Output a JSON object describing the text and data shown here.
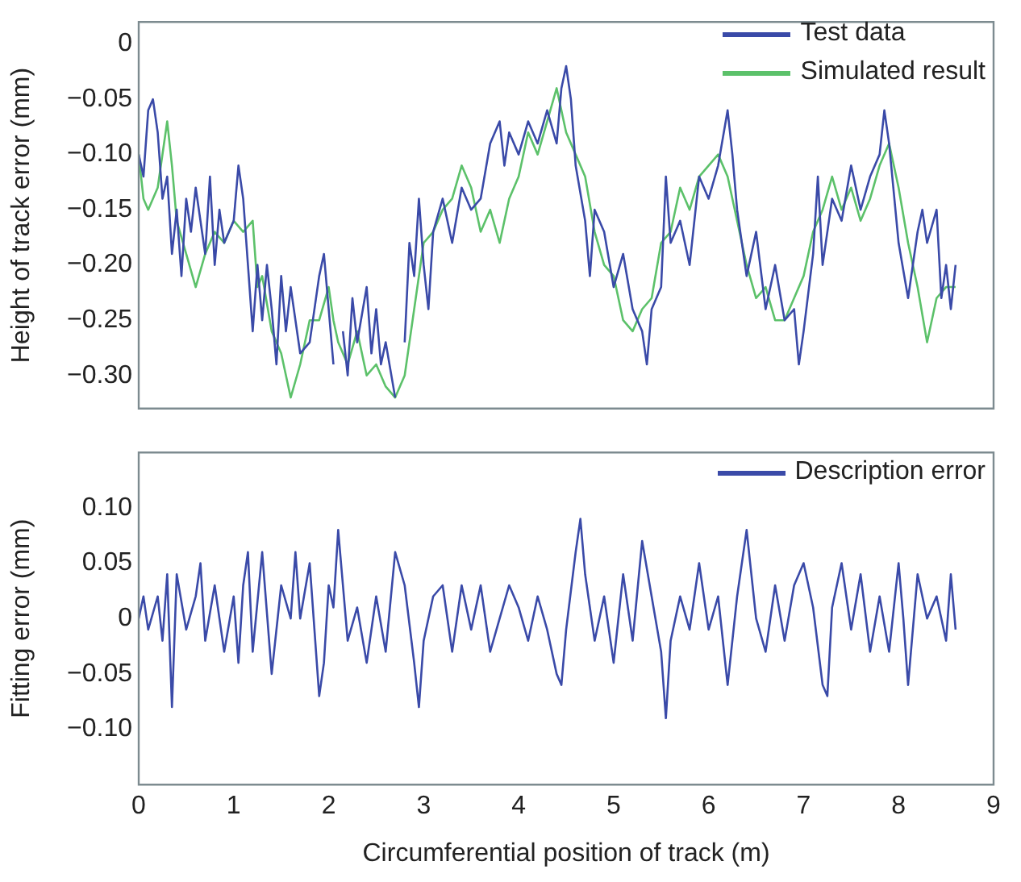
{
  "chart_data": [
    {
      "type": "line",
      "ylabel": "Height of track error (mm)",
      "xlim": [
        0,
        9
      ],
      "ylim": [
        -0.33,
        0.02
      ],
      "yticks": [
        {
          "value": 0,
          "label": "0"
        },
        {
          "value": -0.05,
          "label": "−0.05"
        },
        {
          "value": -0.1,
          "label": "−0.10"
        },
        {
          "value": -0.15,
          "label": "−0.15"
        },
        {
          "value": -0.2,
          "label": "−0.20"
        },
        {
          "value": -0.25,
          "label": "−0.25"
        },
        {
          "value": -0.3,
          "label": "−0.30"
        }
      ],
      "tick_labels": "y",
      "grid": false,
      "legend": "top right",
      "marker": "none",
      "line_style": "solid",
      "series": [
        {
          "name": "Test data",
          "color": "#3a4aa8",
          "x": [
            0,
            0.05,
            0.1,
            0.15,
            0.2,
            0.25,
            0.3,
            0.35,
            0.4,
            0.45,
            0.5,
            0.55,
            0.6,
            0.7,
            0.75,
            0.8,
            0.85,
            0.9,
            1.0,
            1.05,
            1.1,
            1.15,
            1.2,
            1.25,
            1.3,
            1.35,
            1.4,
            1.45,
            1.5,
            1.55,
            1.6,
            1.7,
            1.8,
            1.9,
            1.95,
            2.0,
            2.05,
            2.1,
            2.15,
            2.2,
            2.25,
            2.3,
            2.4,
            2.45,
            2.5,
            2.55,
            2.6,
            2.7,
            2.75,
            2.8,
            2.85,
            2.9,
            2.95,
            3.0,
            3.05,
            3.1,
            3.2,
            3.3,
            3.4,
            3.5,
            3.6,
            3.7,
            3.8,
            3.85,
            3.9,
            4.0,
            4.1,
            4.2,
            4.3,
            4.4,
            4.45,
            4.5,
            4.55,
            4.6,
            4.7,
            4.75,
            4.8,
            4.9,
            5.0,
            5.1,
            5.2,
            5.3,
            5.35,
            5.4,
            5.5,
            5.55,
            5.6,
            5.7,
            5.8,
            5.9,
            6.0,
            6.1,
            6.2,
            6.25,
            6.3,
            6.4,
            6.5,
            6.6,
            6.7,
            6.8,
            6.9,
            6.95,
            7.0,
            7.1,
            7.15,
            7.2,
            7.3,
            7.4,
            7.5,
            7.6,
            7.7,
            7.8,
            7.85,
            7.9,
            8.0,
            8.1,
            8.2,
            8.25,
            8.3,
            8.4,
            8.45,
            8.5,
            8.55,
            8.6
          ],
          "values": [
            -0.1,
            -0.12,
            -0.06,
            -0.05,
            -0.08,
            -0.14,
            -0.12,
            -0.19,
            -0.15,
            -0.21,
            -0.14,
            -0.17,
            -0.13,
            -0.19,
            -0.12,
            -0.2,
            -0.15,
            -0.18,
            -0.16,
            -0.11,
            -0.14,
            -0.2,
            -0.26,
            -0.2,
            -0.25,
            -0.2,
            -0.24,
            -0.29,
            -0.21,
            -0.26,
            -0.22,
            -0.28,
            -0.27,
            -0.21,
            -0.19,
            -0.24,
            -0.29,
            null,
            -0.26,
            -0.3,
            -0.23,
            -0.27,
            -0.22,
            -0.28,
            -0.24,
            -0.29,
            -0.27,
            -0.32,
            null,
            -0.27,
            -0.18,
            -0.21,
            -0.14,
            -0.2,
            -0.24,
            -0.17,
            -0.14,
            -0.18,
            -0.13,
            -0.15,
            -0.14,
            -0.09,
            -0.07,
            -0.11,
            -0.08,
            -0.1,
            -0.07,
            -0.09,
            -0.06,
            -0.09,
            -0.04,
            -0.02,
            -0.05,
            -0.11,
            -0.16,
            -0.21,
            -0.15,
            -0.17,
            -0.22,
            -0.19,
            -0.24,
            -0.26,
            -0.29,
            -0.24,
            -0.22,
            -0.12,
            -0.18,
            -0.16,
            -0.2,
            -0.12,
            -0.14,
            -0.11,
            -0.06,
            -0.1,
            -0.15,
            -0.21,
            -0.17,
            -0.24,
            -0.2,
            -0.25,
            -0.24,
            -0.29,
            -0.26,
            -0.19,
            -0.12,
            -0.2,
            -0.14,
            -0.16,
            -0.11,
            -0.15,
            -0.12,
            -0.1,
            -0.06,
            -0.09,
            -0.18,
            -0.23,
            -0.17,
            -0.15,
            -0.18,
            -0.15,
            -0.23,
            -0.2,
            -0.24,
            -0.2
          ]
        },
        {
          "name": "Simulated result",
          "color": "#5cc16a",
          "x": [
            0,
            0.05,
            0.1,
            0.2,
            0.3,
            0.35,
            0.4,
            0.5,
            0.6,
            0.7,
            0.8,
            0.9,
            1.0,
            1.1,
            1.2,
            1.25,
            1.3,
            1.4,
            1.5,
            1.6,
            1.7,
            1.8,
            1.9,
            2.0,
            2.05,
            2.1,
            2.2,
            2.3,
            2.4,
            2.5,
            2.6,
            2.7,
            2.8,
            2.9,
            3.0,
            3.1,
            3.2,
            3.3,
            3.4,
            3.5,
            3.6,
            3.7,
            3.8,
            3.9,
            4.0,
            4.1,
            4.2,
            4.3,
            4.4,
            4.5,
            4.6,
            4.7,
            4.8,
            4.9,
            5.0,
            5.1,
            5.2,
            5.3,
            5.4,
            5.5,
            5.6,
            5.7,
            5.8,
            5.9,
            6.0,
            6.1,
            6.2,
            6.3,
            6.4,
            6.5,
            6.6,
            6.7,
            6.8,
            6.9,
            7.0,
            7.1,
            7.2,
            7.3,
            7.4,
            7.5,
            7.6,
            7.7,
            7.8,
            7.9,
            8.0,
            8.1,
            8.2,
            8.3,
            8.4,
            8.5,
            8.6
          ],
          "values": [
            -0.1,
            -0.14,
            -0.15,
            -0.13,
            -0.07,
            -0.11,
            -0.16,
            -0.19,
            -0.22,
            -0.19,
            -0.17,
            -0.18,
            -0.16,
            -0.17,
            -0.16,
            -0.22,
            -0.21,
            -0.26,
            -0.28,
            -0.32,
            -0.29,
            -0.25,
            -0.25,
            -0.22,
            -0.25,
            -0.27,
            -0.29,
            -0.26,
            -0.3,
            -0.29,
            -0.31,
            -0.32,
            -0.3,
            -0.24,
            -0.18,
            -0.17,
            -0.15,
            -0.14,
            -0.11,
            -0.13,
            -0.17,
            -0.15,
            -0.18,
            -0.14,
            -0.12,
            -0.08,
            -0.1,
            -0.07,
            -0.04,
            -0.08,
            -0.1,
            -0.12,
            -0.17,
            -0.2,
            -0.21,
            -0.25,
            -0.26,
            -0.24,
            -0.23,
            -0.18,
            -0.17,
            -0.13,
            -0.15,
            -0.12,
            -0.11,
            -0.1,
            -0.12,
            -0.16,
            -0.2,
            -0.23,
            -0.22,
            -0.25,
            -0.25,
            -0.23,
            -0.21,
            -0.17,
            -0.15,
            -0.12,
            -0.15,
            -0.13,
            -0.16,
            -0.14,
            -0.11,
            -0.09,
            -0.13,
            -0.18,
            -0.22,
            -0.27,
            -0.23,
            -0.22,
            -0.22
          ]
        }
      ]
    },
    {
      "type": "line",
      "xlabel": "Circumferential position of track (m)",
      "ylabel": "Fitting error (mm)",
      "xlim": [
        0,
        9
      ],
      "ylim": [
        -0.15,
        0.15
      ],
      "xticks": [
        0,
        1,
        2,
        3,
        4,
        5,
        6,
        7,
        8,
        9
      ],
      "yticks": [
        {
          "value": 0.1,
          "label": "0.10"
        },
        {
          "value": 0.05,
          "label": "0.05"
        },
        {
          "value": 0,
          "label": "0"
        },
        {
          "value": -0.05,
          "label": "−0.05"
        },
        {
          "value": -0.1,
          "label": "−0.10"
        }
      ],
      "grid": false,
      "legend": "top right",
      "marker": "none",
      "line_style": "solid",
      "series": [
        {
          "name": "Description error",
          "color": "#3a4aa8",
          "x": [
            0,
            0.05,
            0.1,
            0.2,
            0.25,
            0.3,
            0.35,
            0.4,
            0.5,
            0.6,
            0.65,
            0.7,
            0.8,
            0.9,
            1.0,
            1.05,
            1.1,
            1.15,
            1.2,
            1.3,
            1.4,
            1.5,
            1.6,
            1.65,
            1.7,
            1.8,
            1.9,
            1.95,
            2.0,
            2.05,
            2.1,
            2.15,
            2.2,
            2.3,
            2.4,
            2.5,
            2.6,
            2.7,
            2.8,
            2.9,
            2.95,
            3.0,
            3.1,
            3.2,
            3.3,
            3.4,
            3.5,
            3.6,
            3.7,
            3.8,
            3.9,
            4.0,
            4.1,
            4.2,
            4.3,
            4.4,
            4.45,
            4.5,
            4.6,
            4.65,
            4.7,
            4.8,
            4.9,
            5.0,
            5.1,
            5.2,
            5.3,
            5.4,
            5.5,
            5.55,
            5.6,
            5.7,
            5.8,
            5.9,
            6.0,
            6.1,
            6.2,
            6.3,
            6.4,
            6.5,
            6.6,
            6.7,
            6.8,
            6.9,
            7.0,
            7.1,
            7.2,
            7.25,
            7.3,
            7.4,
            7.5,
            7.6,
            7.7,
            7.8,
            7.9,
            8.0,
            8.05,
            8.1,
            8.2,
            8.3,
            8.4,
            8.5,
            8.55,
            8.6
          ],
          "values": [
            0.0,
            0.02,
            -0.01,
            0.02,
            -0.02,
            0.04,
            -0.08,
            0.04,
            -0.01,
            0.02,
            0.05,
            -0.02,
            0.03,
            -0.03,
            0.02,
            -0.04,
            0.03,
            0.06,
            -0.03,
            0.06,
            -0.05,
            0.03,
            0.0,
            0.06,
            0.0,
            0.05,
            -0.07,
            -0.04,
            0.03,
            0.01,
            0.08,
            0.03,
            -0.02,
            0.01,
            -0.04,
            0.02,
            -0.03,
            0.06,
            0.03,
            -0.04,
            -0.08,
            -0.02,
            0.02,
            0.03,
            -0.03,
            0.03,
            -0.01,
            0.03,
            -0.03,
            0.0,
            0.03,
            0.01,
            -0.02,
            0.02,
            -0.01,
            -0.05,
            -0.06,
            -0.01,
            0.06,
            0.09,
            0.04,
            -0.02,
            0.02,
            -0.04,
            0.04,
            -0.02,
            0.07,
            0.02,
            -0.03,
            -0.09,
            -0.02,
            0.02,
            -0.01,
            0.05,
            -0.01,
            0.02,
            -0.06,
            0.02,
            0.08,
            0.0,
            -0.03,
            0.03,
            -0.02,
            0.03,
            0.05,
            0.01,
            -0.06,
            -0.07,
            0.01,
            0.05,
            -0.01,
            0.04,
            -0.03,
            0.02,
            -0.03,
            0.05,
            0.0,
            -0.06,
            0.04,
            0.0,
            0.02,
            -0.02,
            0.04,
            -0.01
          ]
        }
      ]
    }
  ]
}
